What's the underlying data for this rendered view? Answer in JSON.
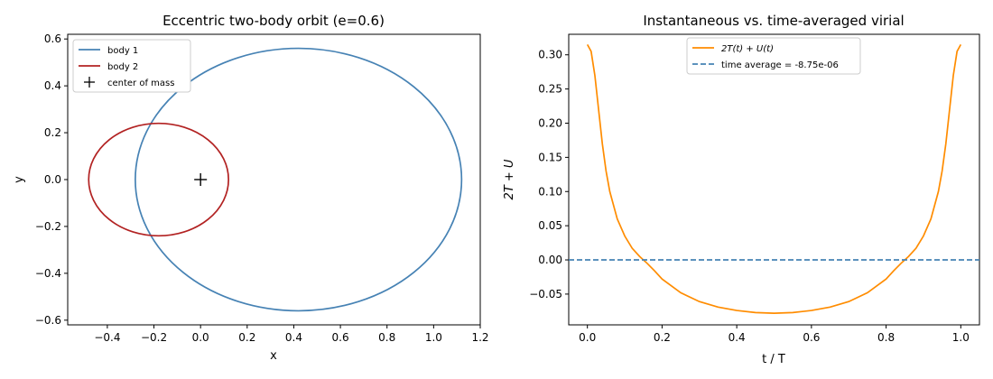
{
  "chart_data": [
    {
      "type": "line",
      "title": "Eccentric two-body orbit (e=0.6)",
      "xlabel": "x",
      "ylabel": "y",
      "xlim": [
        -0.57,
        1.2
      ],
      "ylim": [
        -0.62,
        0.62
      ],
      "xticks": [
        -0.4,
        -0.2,
        0.0,
        0.2,
        0.4,
        0.6,
        0.8,
        1.0,
        1.2
      ],
      "xtick_labels": [
        "−0.4",
        "−0.2",
        "0.0",
        "0.2",
        "0.4",
        "0.6",
        "0.8",
        "1.0",
        "1.2"
      ],
      "yticks": [
        -0.6,
        -0.4,
        -0.2,
        0.0,
        0.2,
        0.4,
        0.6
      ],
      "ytick_labels": [
        "−0.6",
        "−0.4",
        "−0.2",
        "0.0",
        "0.2",
        "0.4",
        "0.6"
      ],
      "grid": false,
      "legend": {
        "position": "upper-left",
        "entries": [
          {
            "label": "body 1",
            "color": "#4682b4",
            "marker": "line"
          },
          {
            "label": "body 2",
            "color": "#b22222",
            "marker": "line"
          },
          {
            "label": "center of mass",
            "color": "#000000",
            "marker": "plus"
          }
        ]
      },
      "series": [
        {
          "name": "body 1",
          "color": "#4682b4",
          "shape": "ellipse",
          "center": [
            0.42,
            0.0
          ],
          "semi_axes": [
            0.7,
            0.56
          ]
        },
        {
          "name": "body 2",
          "color": "#b22222",
          "shape": "ellipse",
          "center": [
            -0.18,
            0.0
          ],
          "semi_axes": [
            0.3,
            0.24
          ]
        },
        {
          "name": "center of mass",
          "color": "#000000",
          "shape": "point",
          "point": [
            0.0,
            0.0
          ]
        }
      ]
    },
    {
      "type": "line",
      "title": "Instantaneous vs. time-averaged virial",
      "xlabel": "t / T",
      "ylabel": "2T + U",
      "xlim": [
        -0.05,
        1.05
      ],
      "ylim": [
        -0.095,
        0.33
      ],
      "xticks": [
        0.0,
        0.2,
        0.4,
        0.6,
        0.8,
        1.0
      ],
      "xtick_labels": [
        "0.0",
        "0.2",
        "0.4",
        "0.6",
        "0.8",
        "1.0"
      ],
      "yticks": [
        -0.05,
        0.0,
        0.05,
        0.1,
        0.15,
        0.2,
        0.25,
        0.3
      ],
      "ytick_labels": [
        "−0.05",
        "0.00",
        "0.05",
        "0.10",
        "0.15",
        "0.20",
        "0.25",
        "0.30"
      ],
      "grid": false,
      "legend": {
        "position": "upper-center",
        "entries": [
          {
            "label": "2T(t) + U(t)",
            "color": "#ff8c00",
            "marker": "line"
          },
          {
            "label": "time average = -8.75e-06",
            "color": "#4682b4",
            "marker": "dashed"
          }
        ]
      },
      "series": [
        {
          "name": "2T(t) + U(t)",
          "color": "#ff8c00",
          "x": [
            0.0,
            0.01,
            0.02,
            0.03,
            0.04,
            0.05,
            0.06,
            0.08,
            0.1,
            0.12,
            0.14,
            0.16,
            0.18,
            0.2,
            0.25,
            0.3,
            0.35,
            0.4,
            0.45,
            0.5,
            0.55,
            0.6,
            0.65,
            0.7,
            0.75,
            0.8,
            0.82,
            0.84,
            0.86,
            0.88,
            0.9,
            0.92,
            0.94,
            0.95,
            0.96,
            0.97,
            0.98,
            0.99,
            1.0
          ],
          "y": [
            0.315,
            0.305,
            0.27,
            0.22,
            0.17,
            0.13,
            0.1,
            0.06,
            0.035,
            0.017,
            0.005,
            -0.005,
            -0.016,
            -0.028,
            -0.048,
            -0.061,
            -0.069,
            -0.074,
            -0.077,
            -0.078,
            -0.077,
            -0.074,
            -0.069,
            -0.061,
            -0.048,
            -0.028,
            -0.016,
            -0.005,
            0.005,
            0.017,
            0.035,
            0.06,
            0.1,
            0.13,
            0.17,
            0.22,
            0.27,
            0.305,
            0.315
          ]
        },
        {
          "name": "time average = -8.75e-06",
          "color": "#4682b4",
          "dashed": true,
          "x": [
            -0.05,
            1.05
          ],
          "y": [
            -8.75e-06,
            -8.75e-06
          ]
        }
      ]
    }
  ]
}
